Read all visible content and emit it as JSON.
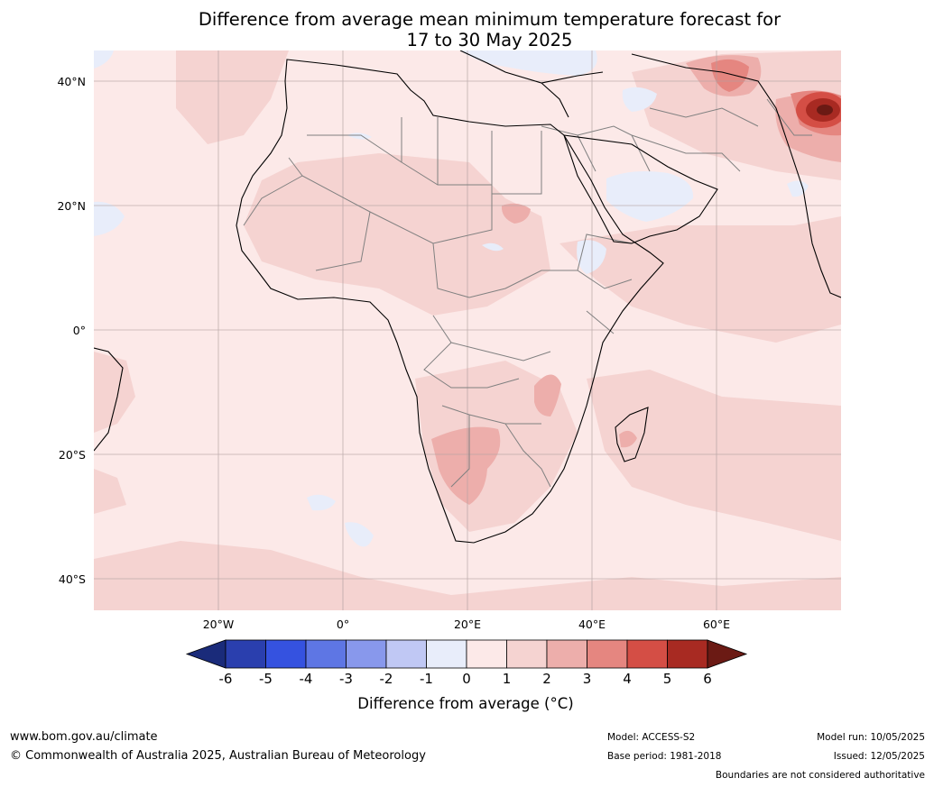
{
  "title_line1": "Difference from average mean minimum temperature forecast for",
  "title_line2": "17 to 30 May 2025",
  "map": {
    "lat_labels": [
      "40°N",
      "20°N",
      "0°",
      "20°S",
      "40°S"
    ],
    "lon_labels": [
      "20°W",
      "0°",
      "20°E",
      "40°E",
      "60°E"
    ],
    "colors": {
      "ocean_base": "#fce9e8",
      "warm_1_2": "#f5d3d1",
      "warm_2_3": "#edaeab",
      "warm_3_4": "#e58680",
      "warm_4_5": "#d44e45",
      "warm_5_6": "#a82a22",
      "warm_over_6": "#6b1a14",
      "cool_0_1": "#e8edfa",
      "coastline": "#000000",
      "borders": "#808080"
    }
  },
  "colorbar": {
    "ticks": [
      "-6",
      "-5",
      "-4",
      "-3",
      "-2",
      "-1",
      "0",
      "1",
      "2",
      "3",
      "4",
      "5",
      "6"
    ],
    "colors": [
      "#1a2b7a",
      "#2a3fae",
      "#3552e0",
      "#5e76e4",
      "#8898ec",
      "#c0c8f4",
      "#e8edfa",
      "#fce9e8",
      "#f5d3d1",
      "#edaeab",
      "#e58680",
      "#d44e45",
      "#a82a22",
      "#6b1a14"
    ],
    "label": "Difference from average (°C)"
  },
  "footer": {
    "website": "www.bom.gov.au/climate",
    "copyright": "© Commonwealth of Australia 2025, Australian Bureau of Meteorology",
    "model": "Model: ACCESS-S2",
    "base_period": "Base period: 1981-2018",
    "model_run": "Model run: 10/05/2025",
    "issued": "Issued: 12/05/2025",
    "disclaimer": "Boundaries are not considered authoritative"
  }
}
